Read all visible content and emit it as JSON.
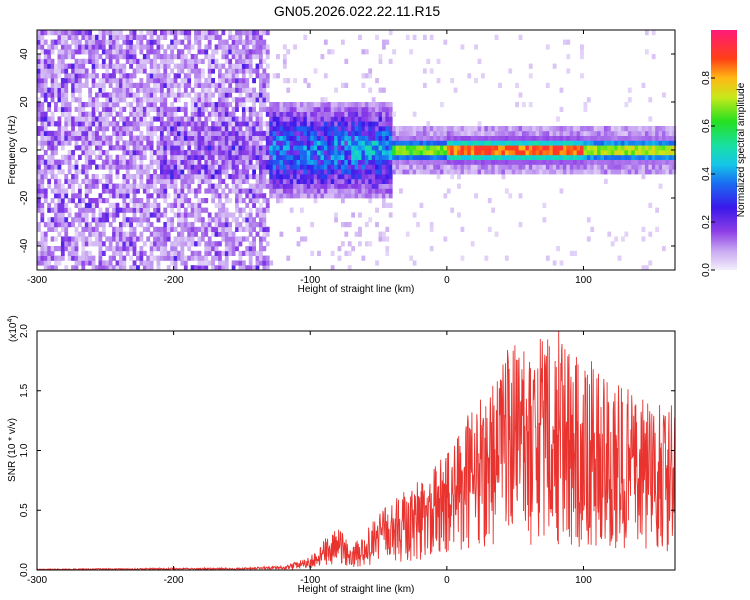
{
  "title": "GN05.2026.022.22.11.R15",
  "chart_data": [
    {
      "type": "heatmap",
      "xlabel": "Height of straight line (km)",
      "ylabel": "Frequency (Hz)",
      "xlim": [
        -300,
        167
      ],
      "ylim": [
        -50,
        50
      ],
      "xticks": [
        "-300",
        "-200",
        "-100",
        "0",
        "100"
      ],
      "yticks": [
        "-40",
        "-20",
        "0",
        "20",
        "40"
      ],
      "colorbar": {
        "label": "Normalized spectral amplitude",
        "range": [
          0,
          1
        ],
        "ticks": [
          "0.0",
          "0.2",
          "0.4",
          "0.6",
          "0.8"
        ]
      },
      "features": {
        "diffuse_noise_region_km": [
          -300,
          -130
        ],
        "narrow_signal_band_start_km": -40,
        "signal_center_frequency_hz": 0,
        "peak_amplitude_range_km": [
          0,
          100
        ]
      }
    },
    {
      "type": "line",
      "xlabel": "Height of straight line (km)",
      "ylabel": "SNR (10 * v/v)",
      "multiplier": "(x10",
      "multiplier_exp": "4",
      "multiplier_close": ")",
      "xlim": [
        -300,
        167
      ],
      "ylim": [
        0,
        2.0
      ],
      "xticks": [
        "-300",
        "-200",
        "-100",
        "0",
        "100"
      ],
      "yticks": [
        "0.0",
        "0.5",
        "1.0",
        "1.5",
        "2.0"
      ],
      "color": "#e8332f",
      "envelope": {
        "x": [
          -300,
          -200,
          -150,
          -120,
          -100,
          -90,
          -80,
          -70,
          -60,
          -50,
          -40,
          -30,
          -20,
          -10,
          0,
          10,
          20,
          30,
          40,
          50,
          60,
          70,
          80,
          90,
          100,
          110,
          120,
          130,
          140,
          150,
          160,
          167
        ],
        "y": [
          0.005,
          0.01,
          0.01,
          0.02,
          0.08,
          0.18,
          0.26,
          0.15,
          0.22,
          0.35,
          0.42,
          0.48,
          0.55,
          0.62,
          0.72,
          0.85,
          1.0,
          1.15,
          1.3,
          1.35,
          1.35,
          1.4,
          1.4,
          1.35,
          1.25,
          1.25,
          1.15,
          1.1,
          1.05,
          1.0,
          1.0,
          1.0
        ]
      },
      "peaks": [
        {
          "x": 37,
          "y": 1.58
        },
        {
          "x": 55,
          "y": 1.68
        },
        {
          "x": 82,
          "y": 2.0
        },
        {
          "x": 96,
          "y": 1.72
        }
      ]
    }
  ]
}
